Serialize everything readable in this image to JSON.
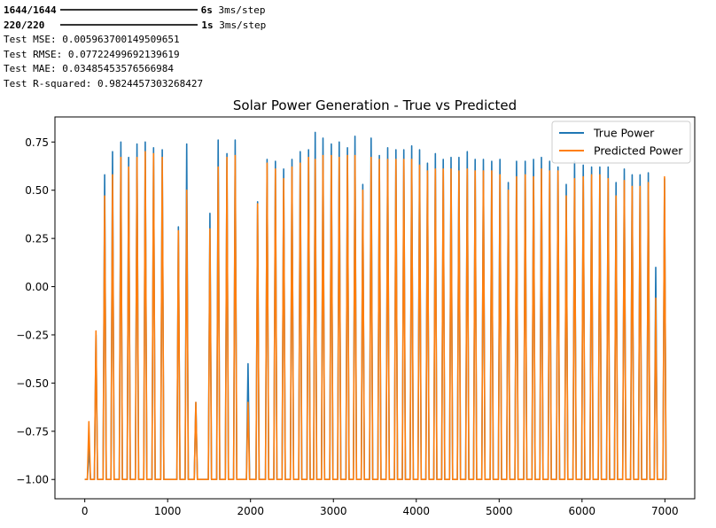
{
  "console": {
    "progress": [
      {
        "step": "1644/1644",
        "elapsed": "6s",
        "rate": "3ms/step"
      },
      {
        "step": "220/220",
        "elapsed": "1s",
        "rate": "3ms/step"
      }
    ],
    "metrics": [
      "Test MSE: 0.005963700149509651",
      "Test RMSE: 0.07722499692139619",
      "Test MAE: 0.03485453576566984",
      "Test R-squared: 0.9824457303268427"
    ]
  },
  "chart_data": {
    "type": "line",
    "title": "Solar Power Generation - True vs Predicted",
    "xlabel": "",
    "ylabel": "",
    "xlim": [
      -360,
      7360
    ],
    "ylim": [
      -1.1,
      0.88
    ],
    "x_ticks": [
      0,
      1000,
      2000,
      3000,
      4000,
      5000,
      6000,
      7000
    ],
    "y_ticks": [
      -1.0,
      -0.75,
      -0.5,
      -0.25,
      0.0,
      0.25,
      0.5,
      0.75
    ],
    "x_tick_labels": [
      "0",
      "1000",
      "2000",
      "3000",
      "4000",
      "5000",
      "6000",
      "7000"
    ],
    "y_tick_labels": [
      "−1.00",
      "−0.75",
      "−0.50",
      "−0.25",
      "0.00",
      "0.25",
      "0.50",
      "0.75"
    ],
    "legend_position": "top-right",
    "baseline": -1.0,
    "series": [
      {
        "name": "True Power",
        "color": "#1f77b4"
      },
      {
        "name": "Predicted Power",
        "color": "#ff7f0e"
      }
    ],
    "cycles": [
      [
        50,
        -0.83,
        -0.7
      ],
      [
        135,
        -0.25,
        -0.23
      ],
      [
        240,
        0.58,
        0.47
      ],
      [
        335,
        0.7,
        0.58
      ],
      [
        435,
        0.75,
        0.67
      ],
      [
        530,
        0.67,
        0.62
      ],
      [
        630,
        0.74,
        0.67
      ],
      [
        730,
        0.75,
        0.7
      ],
      [
        830,
        0.72,
        0.69
      ],
      [
        935,
        0.71,
        0.67
      ],
      [
        1130,
        0.31,
        0.29
      ],
      [
        1230,
        0.74,
        0.5
      ],
      [
        1340,
        -0.6,
        -0.6
      ],
      [
        1510,
        0.38,
        0.3
      ],
      [
        1610,
        0.76,
        0.62
      ],
      [
        1715,
        0.69,
        0.67
      ],
      [
        1815,
        0.76,
        0.68
      ],
      [
        1970,
        -0.4,
        -0.6
      ],
      [
        2085,
        0.44,
        0.43
      ],
      [
        2200,
        0.66,
        0.64
      ],
      [
        2300,
        0.65,
        0.61
      ],
      [
        2400,
        0.61,
        0.56
      ],
      [
        2500,
        0.66,
        0.62
      ],
      [
        2600,
        0.7,
        0.64
      ],
      [
        2700,
        0.71,
        0.67
      ],
      [
        2780,
        0.8,
        0.66
      ],
      [
        2875,
        0.77,
        0.68
      ],
      [
        2975,
        0.74,
        0.68
      ],
      [
        3070,
        0.75,
        0.67
      ],
      [
        3170,
        0.72,
        0.68
      ],
      [
        3260,
        0.78,
        0.68
      ],
      [
        3355,
        0.53,
        0.5
      ],
      [
        3455,
        0.77,
        0.67
      ],
      [
        3555,
        0.68,
        0.66
      ],
      [
        3655,
        0.72,
        0.66
      ],
      [
        3755,
        0.71,
        0.66
      ],
      [
        3850,
        0.71,
        0.66
      ],
      [
        3945,
        0.73,
        0.66
      ],
      [
        4040,
        0.71,
        0.63
      ],
      [
        4135,
        0.64,
        0.6
      ],
      [
        4230,
        0.69,
        0.61
      ],
      [
        4325,
        0.66,
        0.61
      ],
      [
        4420,
        0.67,
        0.61
      ],
      [
        4515,
        0.67,
        0.6
      ],
      [
        4615,
        0.7,
        0.61
      ],
      [
        4710,
        0.66,
        0.6
      ],
      [
        4810,
        0.66,
        0.6
      ],
      [
        4910,
        0.65,
        0.6
      ],
      [
        5010,
        0.66,
        0.58
      ],
      [
        5110,
        0.54,
        0.5
      ],
      [
        5210,
        0.65,
        0.57
      ],
      [
        5315,
        0.65,
        0.58
      ],
      [
        5415,
        0.66,
        0.57
      ],
      [
        5510,
        0.67,
        0.61
      ],
      [
        5610,
        0.65,
        0.6
      ],
      [
        5710,
        0.62,
        0.6
      ],
      [
        5810,
        0.53,
        0.47
      ],
      [
        5910,
        0.65,
        0.56
      ],
      [
        6015,
        0.63,
        0.57
      ],
      [
        6115,
        0.62,
        0.58
      ],
      [
        6215,
        0.62,
        0.58
      ],
      [
        6315,
        0.62,
        0.56
      ],
      [
        6410,
        0.54,
        0.47
      ],
      [
        6510,
        0.61,
        0.55
      ],
      [
        6605,
        0.58,
        0.52
      ],
      [
        6700,
        0.58,
        0.52
      ],
      [
        6800,
        0.59,
        0.54
      ],
      [
        6890,
        0.1,
        -0.06
      ],
      [
        6995,
        0.56,
        0.57
      ]
    ]
  }
}
